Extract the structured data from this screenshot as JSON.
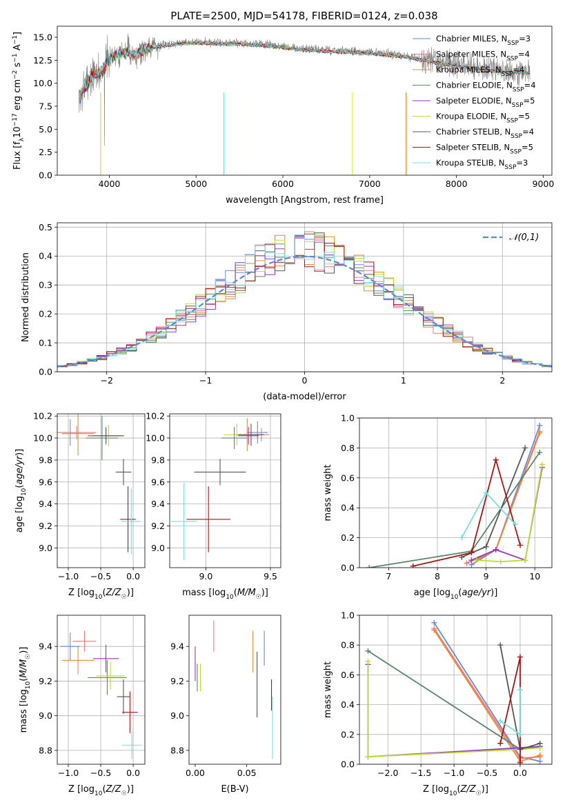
{
  "figure_title": "PLATE=2500, MJD=54178, FIBERID=0124, z=0.038",
  "models": [
    {
      "name": "Chabrier MILES",
      "nssp": "3",
      "color": "#6688dd"
    },
    {
      "name": "Salpeter MILES",
      "nssp": "4",
      "color": "#ee7777"
    },
    {
      "name": "Kroupa MILES",
      "nssp": "4",
      "color": "#ee8833"
    },
    {
      "name": "Chabrier ELODIE",
      "nssp": "4",
      "color": "#558866"
    },
    {
      "name": "Salpeter ELODIE",
      "nssp": "5",
      "color": "#9933cc"
    },
    {
      "name": "Kroupa ELODIE",
      "nssp": "5",
      "color": "#bbdd33"
    },
    {
      "name": "Chabrier STELIB",
      "nssp": "4",
      "color": "#555555"
    },
    {
      "name": "Salpeter STELIB",
      "nssp": "5",
      "color": "#aa1111"
    },
    {
      "name": "Kroupa STELIB",
      "nssp": "3",
      "color": "#77dddd"
    }
  ],
  "chart_data": [
    {
      "id": "spectrum",
      "type": "line",
      "xlabel": "wavelength [Angstrom, rest frame]",
      "ylabel": "Flux [f_λ 10^-17 erg cm^-2 s^-1 A^-1]",
      "xlim": [
        3400,
        9100
      ],
      "ylim": [
        0,
        16.2
      ],
      "xticks": [
        4000,
        5000,
        6000,
        7000,
        8000,
        9000
      ],
      "yticks": [
        0.0,
        2.5,
        5.0,
        7.5,
        10.0,
        12.5,
        15.0
      ],
      "data_color": "#808080",
      "continuum": {
        "x": [
          3650,
          3700,
          3800,
          3900,
          3950,
          4000,
          4100,
          4200,
          4300,
          4400,
          4500,
          4700,
          4900,
          5100,
          5300,
          5500,
          5800,
          6000,
          6200,
          6500,
          6800,
          7100,
          7400,
          7700,
          8000,
          8300,
          8600,
          8850
        ],
        "y": [
          8.0,
          9.5,
          10.8,
          11.3,
          12.0,
          12.8,
          13.3,
          13.5,
          13.2,
          13.8,
          14.0,
          14.3,
          14.5,
          14.5,
          14.4,
          14.4,
          14.2,
          14.0,
          13.8,
          13.6,
          13.5,
          13.3,
          13.0,
          12.5,
          12.0,
          11.6,
          11.3,
          11.3
        ]
      },
      "legend_location": "upper right"
    },
    {
      "id": "residual-histogram",
      "type": "histogram",
      "xlabel": "(data-model)/error",
      "ylabel": "Normed distribution",
      "xlim": [
        -2.5,
        2.5
      ],
      "ylim": [
        0,
        0.515
      ],
      "xticks": [
        -2,
        -1,
        0,
        1,
        2
      ],
      "yticks": [
        0.0,
        0.1,
        0.2,
        0.3,
        0.4,
        0.5
      ],
      "reference_curve": {
        "label": "𝒩(0,1)",
        "mean": 0,
        "sigma": 1,
        "color": "#5588dd"
      },
      "bin_width": 0.1,
      "legend_location": "upper right",
      "grid": true
    },
    {
      "id": "age-vs-Z",
      "type": "errorbar",
      "xlabel": "Z [log10(Z/Z☉)]",
      "ylabel": "age [log10(age/yr)]",
      "xlim": [
        -1.17,
        0.18
      ],
      "ylim": [
        8.82,
        10.22
      ],
      "xticks": [
        -1.0,
        -0.5,
        0.0
      ],
      "yticks": [
        9.0,
        9.2,
        9.4,
        9.6,
        9.8,
        10.0,
        10.2
      ],
      "points": [
        {
          "model": 0,
          "x": -0.97,
          "xerr": 0.18,
          "y": 10.05,
          "yerr": 0.12
        },
        {
          "model": 1,
          "x": -0.87,
          "xerr": 0.3,
          "y": 10.05,
          "yerr": 0.06
        },
        {
          "model": 2,
          "x": -0.85,
          "xerr": 0.25,
          "y": 10.04,
          "yerr": 0.2
        },
        {
          "model": 3,
          "x": -0.48,
          "xerr": 0.25,
          "y": 10.0,
          "yerr": 0.2
        },
        {
          "model": 4,
          "x": -0.42,
          "xerr": 0.2,
          "y": 10.02,
          "yerr": 0.08
        },
        {
          "model": 5,
          "x": -0.38,
          "xerr": 0.22,
          "y": 10.02,
          "yerr": 0.1
        },
        {
          "model": 6,
          "x": -0.42,
          "xerr": 0.28,
          "y": 10.02,
          "yerr": 0.06
        },
        {
          "model": 6,
          "x": -0.15,
          "xerr": 0.12,
          "y": 9.69,
          "yerr": 0.12
        },
        {
          "model": 7,
          "x": -0.08,
          "xerr": 0.12,
          "y": 9.26,
          "yerr": 0.3
        },
        {
          "model": 8,
          "x": -0.03,
          "xerr": 0.15,
          "y": 9.24,
          "yerr": 0.3
        }
      ],
      "grid": true
    },
    {
      "id": "age-vs-mass",
      "type": "errorbar",
      "xlabel": "mass [log10(M/M☉)]",
      "ylabel": "",
      "xlim": [
        8.72,
        9.58
      ],
      "ylim": [
        8.82,
        10.22
      ],
      "xticks": [
        9.0,
        9.5
      ],
      "yticks": [
        9.0,
        9.2,
        9.4,
        9.6,
        9.8,
        10.0,
        10.2
      ],
      "points": [
        {
          "model": 0,
          "x": 9.4,
          "xerr": 0.08,
          "y": 10.05,
          "yerr": 0.1
        },
        {
          "model": 1,
          "x": 9.43,
          "xerr": 0.06,
          "y": 10.03,
          "yerr": 0.06
        },
        {
          "model": 2,
          "x": 9.32,
          "xerr": 0.1,
          "y": 10.03,
          "yerr": 0.15
        },
        {
          "model": 3,
          "x": 9.22,
          "xerr": 0.1,
          "y": 10.0,
          "yerr": 0.1
        },
        {
          "model": 4,
          "x": 9.33,
          "xerr": 0.08,
          "y": 10.02,
          "yerr": 0.08
        },
        {
          "model": 5,
          "x": 9.24,
          "xerr": 0.1,
          "y": 10.03,
          "yerr": 0.1
        },
        {
          "model": 6,
          "x": 9.35,
          "xerr": 0.1,
          "y": 10.03,
          "yerr": 0.1
        },
        {
          "model": 6,
          "x": 9.11,
          "xerr": 0.2,
          "y": 9.69,
          "yerr": 0.12
        },
        {
          "model": 7,
          "x": 9.02,
          "xerr": 0.17,
          "y": 9.26,
          "yerr": 0.3
        },
        {
          "model": 8,
          "x": 8.83,
          "xerr": 0.1,
          "y": 9.24,
          "yerr": 0.35
        }
      ],
      "grid": true
    },
    {
      "id": "mass-weight-vs-age",
      "type": "line",
      "xlabel": "age [log10(age/yr)]",
      "ylabel": "mass weight",
      "xlim": [
        6.4,
        10.35
      ],
      "ylim": [
        0,
        1.0
      ],
      "xticks": [
        7,
        8,
        9,
        10
      ],
      "yticks": [
        0.0,
        0.2,
        0.4,
        0.6,
        0.8,
        1.0
      ],
      "series": [
        {
          "model": 0,
          "x": [
            8.7,
            9.2,
            10.1
          ],
          "y": [
            0.02,
            0.12,
            0.95
          ]
        },
        {
          "model": 1,
          "x": [
            8.6,
            9.2,
            10.1
          ],
          "y": [
            0.03,
            0.12,
            0.91
          ]
        },
        {
          "model": 2,
          "x": [
            8.8,
            9.2,
            10.1
          ],
          "y": [
            0.05,
            0.12,
            0.9
          ]
        },
        {
          "model": 3,
          "x": [
            6.6,
            8.7,
            10.1
          ],
          "y": [
            0.0,
            0.11,
            0.77
          ]
        },
        {
          "model": 4,
          "x": [
            8.7,
            9.2,
            9.8,
            10.15
          ],
          "y": [
            0.05,
            0.12,
            0.05,
            0.67
          ]
        },
        {
          "model": 5,
          "x": [
            8.8,
            9.3,
            9.8,
            10.15
          ],
          "y": [
            0.05,
            0.04,
            0.05,
            0.69
          ]
        },
        {
          "model": 6,
          "x": [
            8.5,
            9.0,
            9.8
          ],
          "y": [
            0.07,
            0.14,
            0.8
          ]
        },
        {
          "model": 7,
          "x": [
            7.5,
            8.7,
            9.2,
            9.7
          ],
          "y": [
            0.01,
            0.1,
            0.72,
            0.15
          ]
        },
        {
          "model": 8,
          "x": [
            8.5,
            9.0,
            9.6
          ],
          "y": [
            0.2,
            0.5,
            0.29
          ]
        }
      ],
      "grid": true
    },
    {
      "id": "mass-vs-Z",
      "type": "errorbar",
      "xlabel": "Z [log10(Z/Z☉)]",
      "ylabel": "mass [log10(M/M☉)]",
      "xlim": [
        -1.17,
        0.18
      ],
      "ylim": [
        8.72,
        9.58
      ],
      "xticks": [
        -1.0,
        -0.5,
        0.0
      ],
      "yticks": [
        8.8,
        9.0,
        9.2,
        9.4
      ],
      "points": [
        {
          "model": 0,
          "x": -0.97,
          "xerr": 0.15,
          "y": 9.4,
          "yerr": 0.08
        },
        {
          "model": 1,
          "x": -0.75,
          "xerr": 0.18,
          "y": 9.43,
          "yerr": 0.06
        },
        {
          "model": 2,
          "x": -0.85,
          "xerr": 0.25,
          "y": 9.32,
          "yerr": 0.08
        },
        {
          "model": 3,
          "x": -0.4,
          "xerr": 0.3,
          "y": 9.22,
          "yerr": 0.1
        },
        {
          "model": 4,
          "x": -0.42,
          "xerr": 0.2,
          "y": 9.33,
          "yerr": 0.08
        },
        {
          "model": 5,
          "x": -0.35,
          "xerr": 0.22,
          "y": 9.23,
          "yerr": 0.08
        },
        {
          "model": 6,
          "x": -0.15,
          "xerr": 0.1,
          "y": 9.11,
          "yerr": 0.1
        },
        {
          "model": 7,
          "x": -0.05,
          "xerr": 0.12,
          "y": 9.02,
          "yerr": 0.12
        },
        {
          "model": 8,
          "x": -0.02,
          "xerr": 0.15,
          "y": 8.83,
          "yerr": 0.08
        }
      ],
      "grid": true
    },
    {
      "id": "mass-vs-EBV",
      "type": "errorbar",
      "xlabel": "E(B-V)",
      "ylabel": "",
      "xlim": [
        -0.006,
        0.083
      ],
      "ylim": [
        8.72,
        9.58
      ],
      "xticks": [
        0.0,
        0.05
      ],
      "yticks": [
        8.8,
        9.0,
        9.2,
        9.4
      ],
      "points": [
        {
          "model": 0,
          "x": 0.067,
          "y": 9.39,
          "yerr": 0.1
        },
        {
          "model": 1,
          "x": 0.018,
          "y": 9.46,
          "yerr": 0.09
        },
        {
          "model": 2,
          "x": 0.056,
          "y": 9.37,
          "yerr": 0.12
        },
        {
          "model": 3,
          "x": 0.002,
          "y": 9.22,
          "yerr": 0.08
        },
        {
          "model": 4,
          "x": 0.0,
          "y": 9.3,
          "yerr": 0.1
        },
        {
          "model": 5,
          "x": 0.005,
          "y": 9.22,
          "yerr": 0.08
        },
        {
          "model": 6,
          "x": 0.06,
          "y": 9.18,
          "yerr": 0.19
        },
        {
          "model": 7,
          "x": 0.074,
          "y": 9.12,
          "yerr": 0.09
        },
        {
          "model": 8,
          "x": 0.075,
          "y": 8.93,
          "yerr": 0.18
        }
      ],
      "grid": false
    },
    {
      "id": "mass-weight-vs-Z",
      "type": "line",
      "xlabel": "Z [log10(Z/Z☉)]",
      "ylabel": "mass weight",
      "xlim": [
        -2.43,
        0.48
      ],
      "ylim": [
        0,
        1.0
      ],
      "xticks": [
        -2.0,
        -1.5,
        -1.0,
        -0.5,
        0.0
      ],
      "yticks": [
        0.0,
        0.2,
        0.4,
        0.6,
        0.8,
        1.0
      ],
      "series": [
        {
          "model": 0,
          "x": [
            -1.3,
            0.0,
            0.3
          ],
          "y": [
            0.95,
            0.05,
            0.02
          ]
        },
        {
          "model": 1,
          "x": [
            -1.3,
            0.0,
            0.3
          ],
          "y": [
            0.91,
            0.04,
            0.05
          ]
        },
        {
          "model": 2,
          "x": [
            -1.3,
            0.0,
            0.3
          ],
          "y": [
            0.9,
            0.02,
            0.06
          ]
        },
        {
          "model": 3,
          "x": [
            -2.3,
            0.0,
            0.3
          ],
          "y": [
            0.76,
            0.1,
            0.12
          ]
        },
        {
          "model": 4,
          "x": [
            -2.3,
            -2.3,
            0.0,
            0.3
          ],
          "y": [
            0.67,
            0.05,
            0.11,
            0.12
          ]
        },
        {
          "model": 5,
          "x": [
            -2.3,
            -2.3,
            0.0,
            0.3
          ],
          "y": [
            0.69,
            0.05,
            0.1,
            0.11
          ]
        },
        {
          "model": 6,
          "x": [
            -0.3,
            0.0,
            0.3
          ],
          "y": [
            0.8,
            0.1,
            0.14
          ]
        },
        {
          "model": 7,
          "x": [
            -0.3,
            0.0,
            0.0
          ],
          "y": [
            0.14,
            0.72,
            0.01
          ]
        },
        {
          "model": 8,
          "x": [
            -0.3,
            0.0,
            0.0
          ],
          "y": [
            0.29,
            0.2,
            0.5
          ]
        }
      ],
      "grid": true
    }
  ]
}
